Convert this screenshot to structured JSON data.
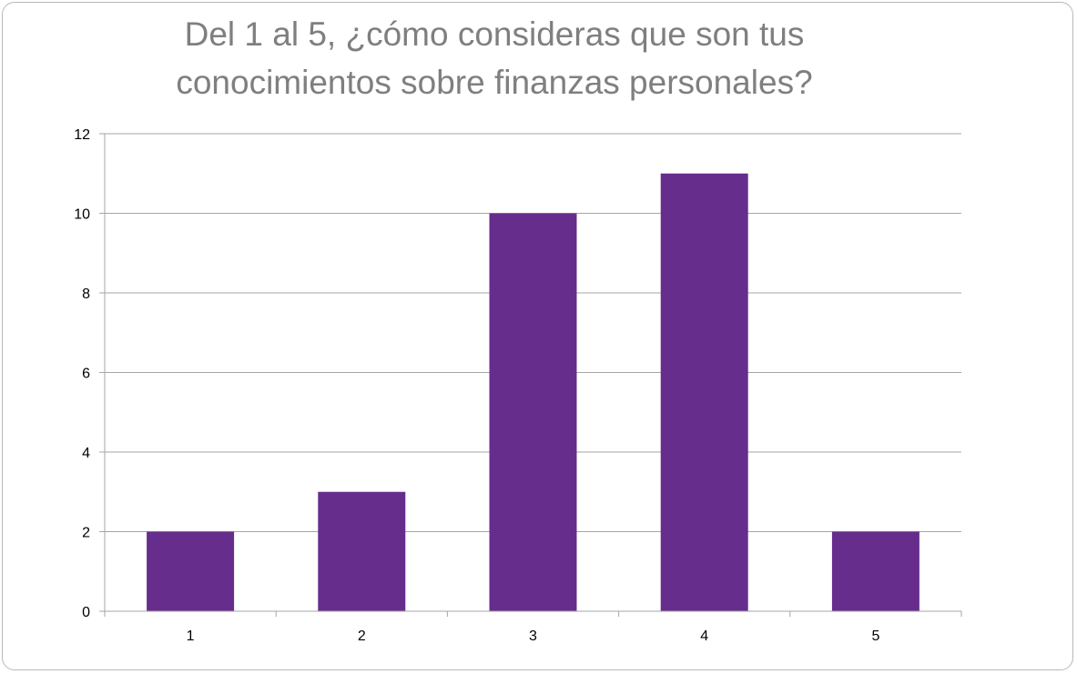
{
  "chart_data": {
    "type": "bar",
    "title": "Del 1 al 5, ¿cómo consideras que son tus conocimientos sobre finanzas personales?",
    "categories": [
      "1",
      "2",
      "3",
      "4",
      "5"
    ],
    "values": [
      2,
      3,
      10,
      11,
      2
    ],
    "ylim": [
      0,
      12
    ],
    "yticks": [
      0,
      2,
      4,
      6,
      8,
      10,
      12
    ],
    "grid": true,
    "legend": "none",
    "colors": {
      "bar": "#662d8c",
      "grid": "#a6a6a6",
      "axis": "#a6a6a6",
      "title": "#7f7f7f"
    }
  }
}
